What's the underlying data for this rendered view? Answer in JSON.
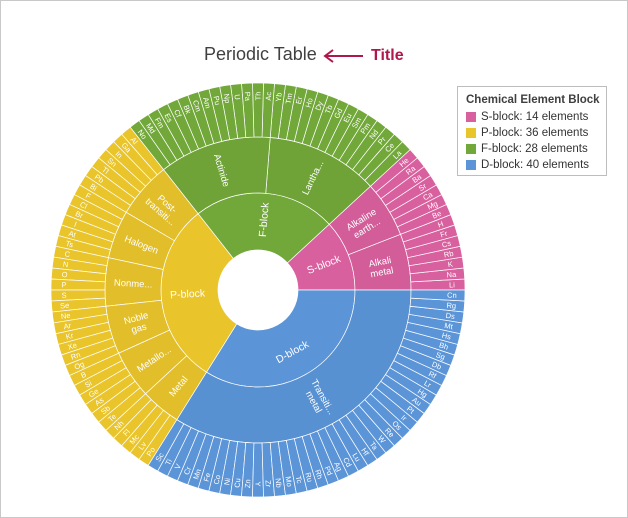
{
  "chart_data": {
    "type": "sunburst",
    "title": "Periodic Table",
    "annotation": "Title",
    "legend": {
      "title": "Chemical Element Block",
      "position": "top-right",
      "items": [
        {
          "label": "S-block: 14 elements",
          "color": "#d9609e"
        },
        {
          "label": "P-block: 36 elements",
          "color": "#e9c42b"
        },
        {
          "label": "F-block: 28 elements",
          "color": "#72a83a"
        },
        {
          "label": "D-block: 40 elements",
          "color": "#5b95d8"
        }
      ]
    },
    "blocks": [
      {
        "name": "S-block",
        "count": 14,
        "color": "#d9609e",
        "groups": [
          {
            "name": "Alkali metal",
            "label": "Alkali\nmetal",
            "elements": [
              "Li",
              "Na",
              "K",
              "Rb",
              "Cs",
              "Fr",
              "H"
            ]
          },
          {
            "name": "Alkaline earth metal",
            "label": "Alkaline\nearth...",
            "elements": [
              "Be",
              "Mg",
              "Ca",
              "Sr",
              "Ba",
              "Ra",
              "He"
            ]
          }
        ]
      },
      {
        "name": "F-block",
        "count": 28,
        "color": "#72a83a",
        "groups": [
          {
            "name": "Lanthanide",
            "label": "Lantha...",
            "elements": [
              "La",
              "Ce",
              "Pr",
              "Nd",
              "Pm",
              "Sm",
              "Eu",
              "Gd",
              "Tb",
              "Dy",
              "Ho",
              "Er",
              "Tm",
              "Yb"
            ]
          },
          {
            "name": "Actinide",
            "label": "Actinide",
            "elements": [
              "Ac",
              "Th",
              "Pa",
              "U",
              "Np",
              "Pu",
              "Am",
              "Cm",
              "Bk",
              "Cf",
              "Es",
              "Fm",
              "Md",
              "No"
            ]
          }
        ]
      },
      {
        "name": "P-block",
        "count": 36,
        "color": "#e9c42b",
        "groups": [
          {
            "name": "Post-transition metal",
            "label": "Post-\ntransiti...",
            "elements": [
              "Al",
              "Ga",
              "In",
              "Sn",
              "Tl",
              "Pb",
              "Bi"
            ]
          },
          {
            "name": "Halogen",
            "label": "Halogen",
            "elements": [
              "F",
              "Cl",
              "Br",
              "I",
              "At",
              "Ts"
            ]
          },
          {
            "name": "Nonmetal",
            "label": "Nonme...",
            "elements": [
              "C",
              "N",
              "O",
              "P",
              "S",
              "Se"
            ]
          },
          {
            "name": "Noble gas",
            "label": "Noble\ngas",
            "elements": [
              "Ne",
              "Ar",
              "Kr",
              "Xe",
              "Rn",
              "Og"
            ]
          },
          {
            "name": "Metalloid",
            "label": "Metallo...",
            "elements": [
              "B",
              "Si",
              "Ge",
              "As",
              "Sb",
              "Te"
            ]
          },
          {
            "name": "Metal",
            "label": "Metal",
            "elements": [
              "Nh",
              "Fl",
              "Mc",
              "Lv",
              "Po"
            ]
          }
        ]
      },
      {
        "name": "D-block",
        "count": 40,
        "color": "#5b95d8",
        "groups": [
          {
            "name": "Transition metal",
            "label": "Transiti...\nmetal",
            "elements": [
              "Sc",
              "Ti",
              "V",
              "Cr",
              "Mn",
              "Fe",
              "Co",
              "Ni",
              "Cu",
              "Zn",
              "Y",
              "Zr",
              "Nb",
              "Mo",
              "Tc",
              "Ru",
              "Rh",
              "Pd",
              "Ag",
              "Cd",
              "Lu",
              "Hf",
              "Ta",
              "W",
              "Re",
              "Os",
              "Ir",
              "Pt",
              "Au",
              "Hg",
              "Lr",
              "Rf",
              "Db",
              "Sg",
              "Bh",
              "Hs",
              "Mt",
              "Ds",
              "Rg",
              "Cn"
            ]
          }
        ]
      }
    ]
  }
}
